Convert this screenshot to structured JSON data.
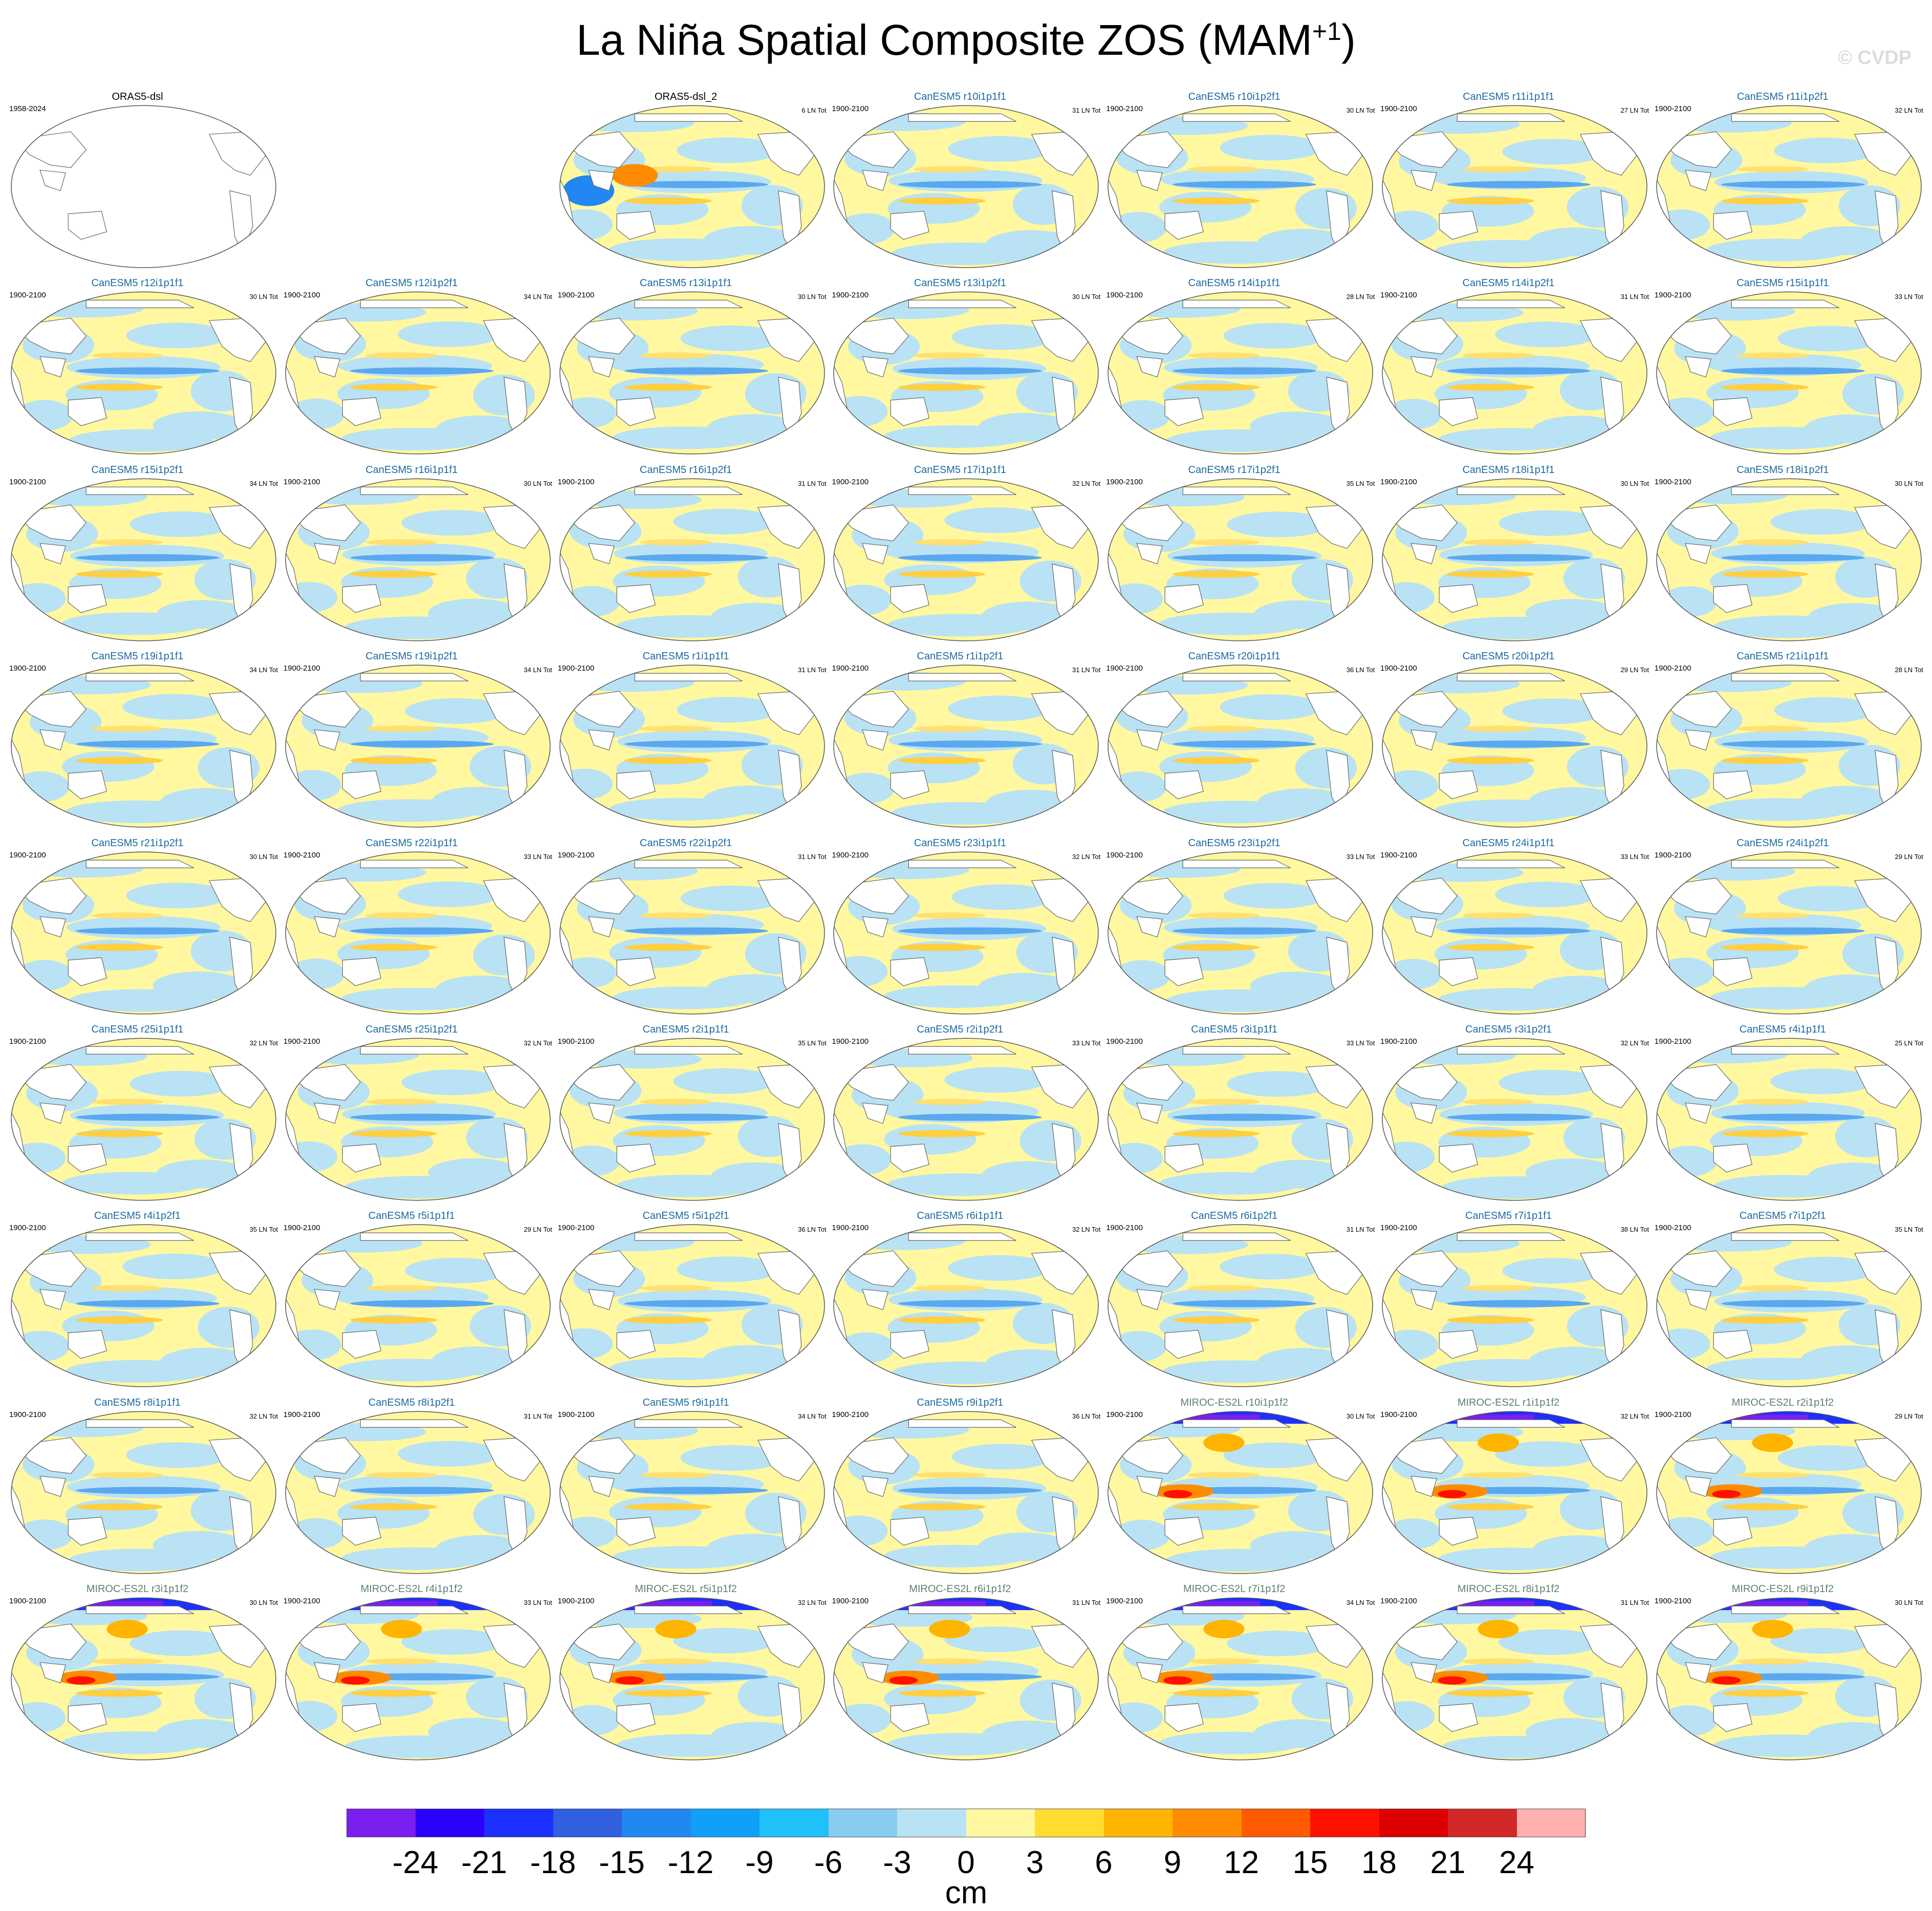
{
  "title": "La Niña Spatial Composite ZOS (MAM",
  "title_superscript": "+1",
  "title_close": ")",
  "watermark": "© CVDP",
  "colors": {
    "ocean_positive": "#fff8a0",
    "ocean_negative": "#b9e2f4",
    "land": "#ffffff",
    "coast": "#666666",
    "ens_title_canesm": "#1a6aa0",
    "ens_title_miroc": "#5d8070",
    "obs_title": "#000000"
  },
  "panels": [
    {
      "title": "ORAS5-dsl",
      "range": "1958-2024",
      "lncount": "",
      "kind": "blank"
    },
    {
      "title": "ORAS5-dsl_2",
      "range": "",
      "lncount": "6 LN Tot",
      "kind": "obs"
    },
    {
      "title": "CanESM5 r10i1p1f1",
      "range": "1900-2100",
      "lncount": "31 LN Tot",
      "kind": "canesm"
    },
    {
      "title": "CanESM5 r10i1p2f1",
      "range": "1900-2100",
      "lncount": "30 LN Tot",
      "kind": "canesm"
    },
    {
      "title": "CanESM5 r11i1p1f1",
      "range": "1900-2100",
      "lncount": "27 LN Tot",
      "kind": "canesm"
    },
    {
      "title": "CanESM5 r11i1p2f1",
      "range": "1900-2100",
      "lncount": "32 LN Tot",
      "kind": "canesm"
    },
    {
      "title": "CanESM5 r12i1p1f1",
      "range": "1900-2100",
      "lncount": "30 LN Tot",
      "kind": "canesm"
    },
    {
      "title": "CanESM5 r12i1p2f1",
      "range": "1900-2100",
      "lncount": "34 LN Tot",
      "kind": "canesm"
    },
    {
      "title": "CanESM5 r13i1p1f1",
      "range": "1900-2100",
      "lncount": "30 LN Tot",
      "kind": "canesm"
    },
    {
      "title": "CanESM5 r13i1p2f1",
      "range": "1900-2100",
      "lncount": "30 LN Tot",
      "kind": "canesm"
    },
    {
      "title": "CanESM5 r14i1p1f1",
      "range": "1900-2100",
      "lncount": "28 LN Tot",
      "kind": "canesm"
    },
    {
      "title": "CanESM5 r14i1p2f1",
      "range": "1900-2100",
      "lncount": "31 LN Tot",
      "kind": "canesm"
    },
    {
      "title": "CanESM5 r15i1p1f1",
      "range": "1900-2100",
      "lncount": "33 LN Tot",
      "kind": "canesm"
    },
    {
      "title": "CanESM5 r15i1p2f1",
      "range": "1900-2100",
      "lncount": "34 LN Tot",
      "kind": "canesm"
    },
    {
      "title": "CanESM5 r16i1p1f1",
      "range": "1900-2100",
      "lncount": "30 LN Tot",
      "kind": "canesm"
    },
    {
      "title": "CanESM5 r16i1p2f1",
      "range": "1900-2100",
      "lncount": "31 LN Tot",
      "kind": "canesm"
    },
    {
      "title": "CanESM5 r17i1p1f1",
      "range": "1900-2100",
      "lncount": "32 LN Tot",
      "kind": "canesm"
    },
    {
      "title": "CanESM5 r17i1p2f1",
      "range": "1900-2100",
      "lncount": "35 LN Tot",
      "kind": "canesm"
    },
    {
      "title": "CanESM5 r18i1p1f1",
      "range": "1900-2100",
      "lncount": "30 LN Tot",
      "kind": "canesm"
    },
    {
      "title": "CanESM5 r18i1p2f1",
      "range": "1900-2100",
      "lncount": "30 LN Tot",
      "kind": "canesm"
    },
    {
      "title": "CanESM5 r19i1p1f1",
      "range": "1900-2100",
      "lncount": "34 LN Tot",
      "kind": "canesm"
    },
    {
      "title": "CanESM5 r19i1p2f1",
      "range": "1900-2100",
      "lncount": "34 LN Tot",
      "kind": "canesm"
    },
    {
      "title": "CanESM5 r1i1p1f1",
      "range": "1900-2100",
      "lncount": "31 LN Tot",
      "kind": "canesm"
    },
    {
      "title": "CanESM5 r1i1p2f1",
      "range": "1900-2100",
      "lncount": "31 LN Tot",
      "kind": "canesm"
    },
    {
      "title": "CanESM5 r20i1p1f1",
      "range": "1900-2100",
      "lncount": "36 LN Tot",
      "kind": "canesm"
    },
    {
      "title": "CanESM5 r20i1p2f1",
      "range": "1900-2100",
      "lncount": "29 LN Tot",
      "kind": "canesm"
    },
    {
      "title": "CanESM5 r21i1p1f1",
      "range": "1900-2100",
      "lncount": "28 LN Tot",
      "kind": "canesm"
    },
    {
      "title": "CanESM5 r21i1p2f1",
      "range": "1900-2100",
      "lncount": "30 LN Tot",
      "kind": "canesm"
    },
    {
      "title": "CanESM5 r22i1p1f1",
      "range": "1900-2100",
      "lncount": "33 LN Tot",
      "kind": "canesm"
    },
    {
      "title": "CanESM5 r22i1p2f1",
      "range": "1900-2100",
      "lncount": "31 LN Tot",
      "kind": "canesm"
    },
    {
      "title": "CanESM5 r23i1p1f1",
      "range": "1900-2100",
      "lncount": "32 LN Tot",
      "kind": "canesm"
    },
    {
      "title": "CanESM5 r23i1p2f1",
      "range": "1900-2100",
      "lncount": "33 LN Tot",
      "kind": "canesm"
    },
    {
      "title": "CanESM5 r24i1p1f1",
      "range": "1900-2100",
      "lncount": "33 LN Tot",
      "kind": "canesm"
    },
    {
      "title": "CanESM5 r24i1p2f1",
      "range": "1900-2100",
      "lncount": "29 LN Tot",
      "kind": "canesm"
    },
    {
      "title": "CanESM5 r25i1p1f1",
      "range": "1900-2100",
      "lncount": "32 LN Tot",
      "kind": "canesm"
    },
    {
      "title": "CanESM5 r25i1p2f1",
      "range": "1900-2100",
      "lncount": "32 LN Tot",
      "kind": "canesm"
    },
    {
      "title": "CanESM5 r2i1p1f1",
      "range": "1900-2100",
      "lncount": "35 LN Tot",
      "kind": "canesm"
    },
    {
      "title": "CanESM5 r2i1p2f1",
      "range": "1900-2100",
      "lncount": "33 LN Tot",
      "kind": "canesm"
    },
    {
      "title": "CanESM5 r3i1p1f1",
      "range": "1900-2100",
      "lncount": "33 LN Tot",
      "kind": "canesm"
    },
    {
      "title": "CanESM5 r3i1p2f1",
      "range": "1900-2100",
      "lncount": "32 LN Tot",
      "kind": "canesm"
    },
    {
      "title": "CanESM5 r4i1p1f1",
      "range": "1900-2100",
      "lncount": "25 LN Tot",
      "kind": "canesm"
    },
    {
      "title": "CanESM5 r4i1p2f1",
      "range": "1900-2100",
      "lncount": "35 LN Tot",
      "kind": "canesm"
    },
    {
      "title": "CanESM5 r5i1p1f1",
      "range": "1900-2100",
      "lncount": "29 LN Tot",
      "kind": "canesm"
    },
    {
      "title": "CanESM5 r5i1p2f1",
      "range": "1900-2100",
      "lncount": "36 LN Tot",
      "kind": "canesm"
    },
    {
      "title": "CanESM5 r6i1p1f1",
      "range": "1900-2100",
      "lncount": "32 LN Tot",
      "kind": "canesm"
    },
    {
      "title": "CanESM5 r6i1p2f1",
      "range": "1900-2100",
      "lncount": "31 LN Tot",
      "kind": "canesm"
    },
    {
      "title": "CanESM5 r7i1p1f1",
      "range": "1900-2100",
      "lncount": "38 LN Tot",
      "kind": "canesm"
    },
    {
      "title": "CanESM5 r7i1p2f1",
      "range": "1900-2100",
      "lncount": "35 LN Tot",
      "kind": "canesm"
    },
    {
      "title": "CanESM5 r8i1p1f1",
      "range": "1900-2100",
      "lncount": "32 LN Tot",
      "kind": "canesm"
    },
    {
      "title": "CanESM5 r8i1p2f1",
      "range": "1900-2100",
      "lncount": "31 LN Tot",
      "kind": "canesm"
    },
    {
      "title": "CanESM5 r9i1p1f1",
      "range": "1900-2100",
      "lncount": "34 LN Tot",
      "kind": "canesm"
    },
    {
      "title": "CanESM5 r9i1p2f1",
      "range": "1900-2100",
      "lncount": "36 LN Tot",
      "kind": "canesm"
    },
    {
      "title": "MIROC-ES2L r10i1p1f2",
      "range": "1900-2100",
      "lncount": "30 LN Tot",
      "kind": "miroc"
    },
    {
      "title": "MIROC-ES2L r1i1p1f2",
      "range": "1900-2100",
      "lncount": "32 LN Tot",
      "kind": "miroc"
    },
    {
      "title": "MIROC-ES2L r2i1p1f2",
      "range": "1900-2100",
      "lncount": "29 LN Tot",
      "kind": "miroc"
    },
    {
      "title": "MIROC-ES2L r3i1p1f2",
      "range": "1900-2100",
      "lncount": "30 LN Tot",
      "kind": "miroc"
    },
    {
      "title": "MIROC-ES2L r4i1p1f2",
      "range": "1900-2100",
      "lncount": "33 LN Tot",
      "kind": "miroc"
    },
    {
      "title": "MIROC-ES2L r5i1p1f2",
      "range": "1900-2100",
      "lncount": "32 LN Tot",
      "kind": "miroc"
    },
    {
      "title": "MIROC-ES2L r6i1p1f2",
      "range": "1900-2100",
      "lncount": "31 LN Tot",
      "kind": "miroc"
    },
    {
      "title": "MIROC-ES2L r7i1p1f2",
      "range": "1900-2100",
      "lncount": "34 LN Tot",
      "kind": "miroc"
    },
    {
      "title": "MIROC-ES2L r8i1p1f2",
      "range": "1900-2100",
      "lncount": "31 LN Tot",
      "kind": "miroc"
    },
    {
      "title": "MIROC-ES2L r9i1p1f2",
      "range": "1900-2100",
      "lncount": "30 LN Tot",
      "kind": "miroc"
    }
  ],
  "chart_data": {
    "type": "heatmap",
    "title": "La Niña Spatial Composite ZOS (MAM+1)",
    "projection": "global map panels, Pacific-centered",
    "colorbar": {
      "unit": "cm",
      "levels": [
        -24,
        -21,
        -18,
        -15,
        -12,
        -9,
        -6,
        -3,
        0,
        3,
        6,
        9,
        12,
        15,
        18,
        21,
        24
      ],
      "tick_labels": [
        "-24",
        "-21",
        "-18",
        "-15",
        "-12",
        "-9",
        "-6",
        "-3",
        "0",
        "3",
        "6",
        "9",
        "12",
        "15",
        "18",
        "21",
        "24"
      ],
      "colors": [
        "#7a1ff0",
        "#2a00ff",
        "#1c30ff",
        "#3060e0",
        "#2088f0",
        "#10a0f8",
        "#20c0f8",
        "#88ccf0",
        "#b9e2f4",
        "#fff8a0",
        "#ffdc30",
        "#ffb400",
        "#ff8c00",
        "#ff5a00",
        "#ff1000",
        "#dc0000",
        "#d22828",
        "#ffb0b0"
      ]
    }
  }
}
